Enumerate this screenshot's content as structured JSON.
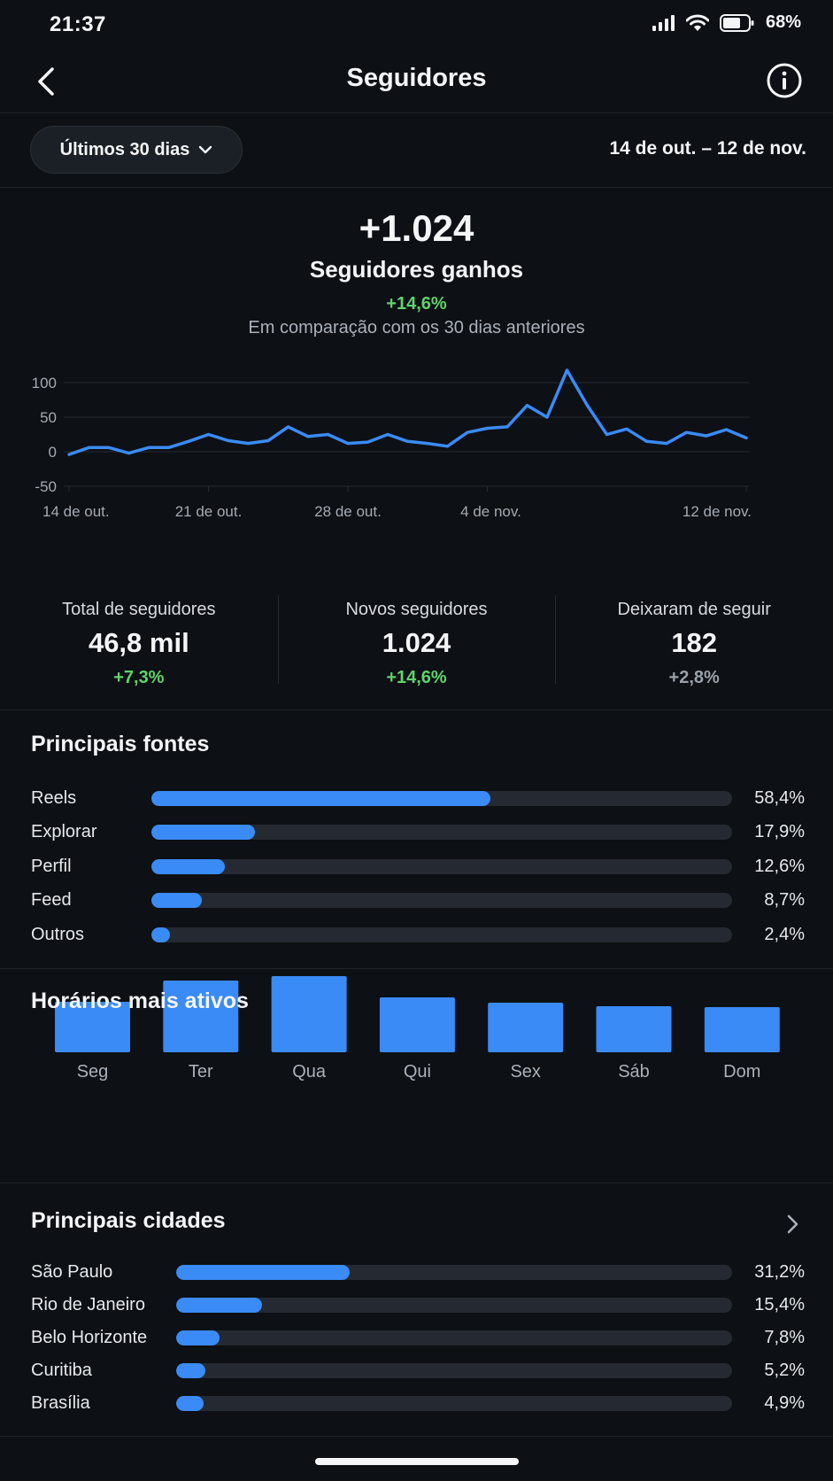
{
  "status_bar": {
    "time": "21:37",
    "battery": "68%",
    "battery_level": 0.68
  },
  "nav": {
    "title": "Seguidores",
    "back_icon": "chevron-left-icon",
    "info_icon": "info-icon"
  },
  "filter": {
    "period_label": "Últimos 30 dias",
    "date_range": "14 de out. – 12 de nov."
  },
  "summary": {
    "value": "+1.024",
    "label": "Seguidores ganhos",
    "change": "+14,6%",
    "compare": "Em comparação com os 30 dias anteriores"
  },
  "colors": {
    "accent": "#3a8bf5",
    "positive": "#5fd36b",
    "neutral": "#9aa1aa",
    "background": "#0d1014"
  },
  "chart_data": {
    "type": "line",
    "title": "",
    "xlabel": "",
    "ylabel": "",
    "ylim": [
      -50,
      150
    ],
    "yticks": [
      "150",
      "100",
      "50",
      "0",
      "-50"
    ],
    "xticks": [
      "14 de out.",
      "21 de out.",
      "28 de out.",
      "4 de nov.",
      "12 de nov."
    ],
    "grid": true,
    "series": [
      {
        "values": [
          -4,
          6,
          6,
          -2,
          6,
          6,
          15,
          25,
          16,
          12,
          16,
          36,
          22,
          25,
          12,
          14,
          25,
          15,
          12,
          8,
          28,
          34,
          36,
          67,
          50,
          118,
          68,
          25,
          33,
          15,
          12,
          28,
          23,
          32,
          20
        ]
      }
    ]
  },
  "kpis": [
    {
      "label": "Total de seguidores",
      "value": "46,8 mil",
      "change": "+7,3%"
    },
    {
      "label": "Novos seguidores",
      "value": "1.024",
      "change": "+14,6%"
    },
    {
      "label": "Deixaram de seguir",
      "value": "182",
      "change": "+2,8%"
    }
  ],
  "sources": {
    "title": "Principais fontes",
    "items": [
      {
        "label": "Reels",
        "pct": "58,4%",
        "value": 58.4
      },
      {
        "label": "Explorar",
        "pct": "17,9%",
        "value": 17.9
      },
      {
        "label": "Perfil",
        "pct": "12,6%",
        "value": 12.6
      },
      {
        "label": "Feed",
        "pct": "8,7%",
        "value": 8.7
      },
      {
        "label": "Outros",
        "pct": "2,4%",
        "value": 2.4
      }
    ]
  },
  "active_hours": {
    "title": "Horários mais ativos",
    "chart_data": {
      "type": "bar",
      "categories": [
        "Seg",
        "Ter",
        "Qua",
        "Qui",
        "Sex",
        "Sáb",
        "Dom"
      ],
      "values": [
        57,
        81,
        86,
        62,
        56,
        52,
        51
      ]
    }
  },
  "cities": {
    "title": "Principais cidades",
    "chevron_icon": "chevron-right-icon",
    "items": [
      {
        "label": "São Paulo",
        "pct": "31,2%",
        "value": 31.2
      },
      {
        "label": "Rio de Janeiro",
        "pct": "15,4%",
        "value": 15.4
      },
      {
        "label": "Belo Horizonte",
        "pct": "7,8%",
        "value": 7.8
      },
      {
        "label": "Curitiba",
        "pct": "5,2%",
        "value": 5.2
      },
      {
        "label": "Brasília",
        "pct": "4,9%",
        "value": 4.9
      }
    ]
  }
}
